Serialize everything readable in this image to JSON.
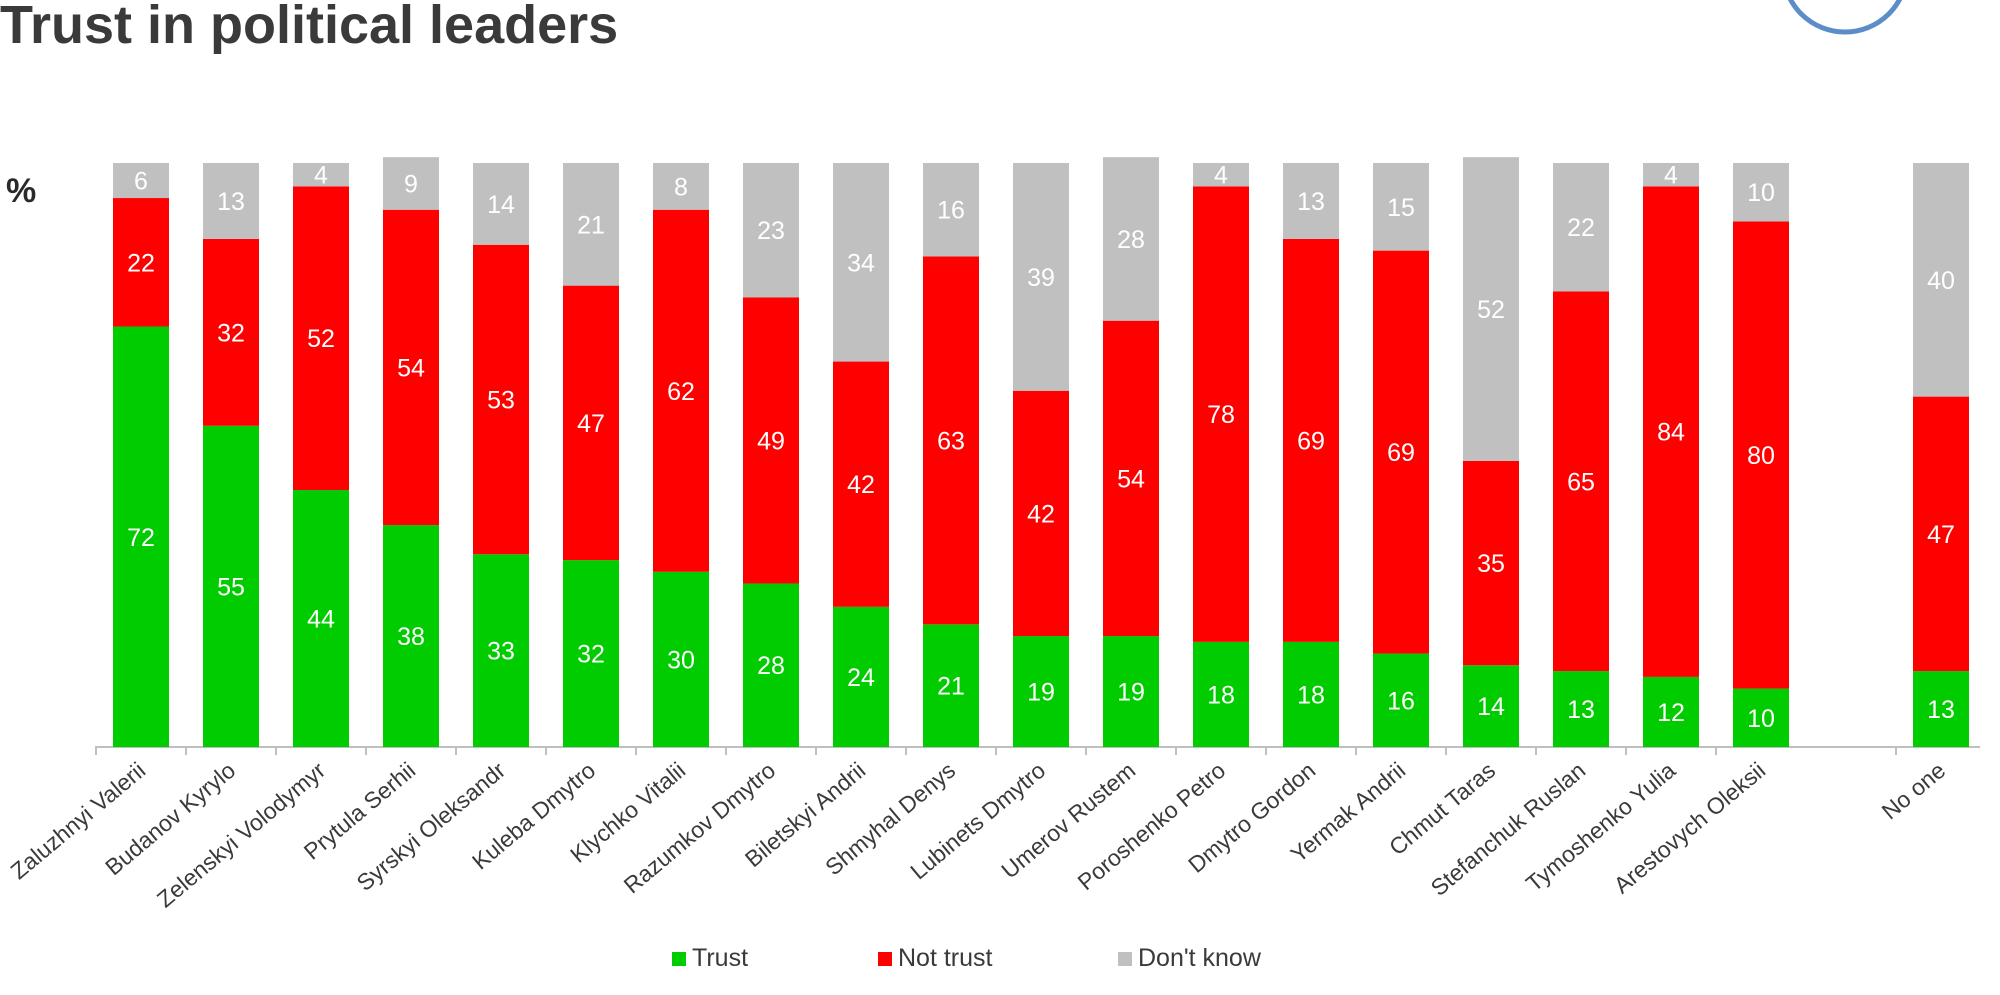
{
  "title": "Trust in political leaders",
  "unit_label": "%",
  "colors": {
    "trust": "#00cc00",
    "not_trust": "#ff0000",
    "dont_know": "#c0c0c0"
  },
  "chart_data": {
    "type": "bar",
    "stacked": true,
    "orientation": "vertical",
    "categories": [
      "Zaluzhnyi Valerii",
      "Budanov Kyrylo",
      "Zelenskyi Volodymyr",
      "Prytula Serhii",
      "Syrskyi Oleksandr",
      "Kuleba Dmytro",
      "Klychko Vitalii",
      "Razumkov Dmytro",
      "Biletskyi Andrii",
      "Shmyhal Denys",
      "Lubinets Dmytro",
      "Umerov Rustem",
      "Poroshenko Petro",
      "Dmytro Gordon",
      "Yermak Andrii",
      "Chmut Taras",
      "Stefanchuk Ruslan",
      "Tymoshenko Yulia",
      "Arestovych Oleksii",
      "No one"
    ],
    "series": [
      {
        "name": "Trust",
        "values": [
          72,
          55,
          44,
          38,
          33,
          32,
          30,
          28,
          24,
          21,
          19,
          19,
          18,
          18,
          16,
          14,
          13,
          12,
          10,
          13
        ]
      },
      {
        "name": "Not trust",
        "values": [
          22,
          32,
          52,
          54,
          53,
          47,
          62,
          49,
          42,
          63,
          42,
          54,
          78,
          69,
          69,
          35,
          65,
          84,
          80,
          47
        ]
      },
      {
        "name": "Don't know",
        "values": [
          6,
          13,
          4,
          9,
          14,
          21,
          8,
          23,
          34,
          16,
          39,
          28,
          4,
          13,
          15,
          52,
          22,
          4,
          10,
          40
        ]
      }
    ],
    "ylim": [
      0,
      100
    ],
    "title": "Trust in political leaders",
    "ylabel": "%",
    "legend_position": "bottom"
  }
}
